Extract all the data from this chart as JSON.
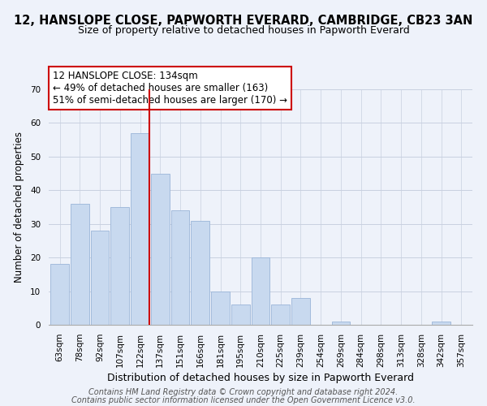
{
  "title": "12, HANSLOPE CLOSE, PAPWORTH EVERARD, CAMBRIDGE, CB23 3AN",
  "subtitle": "Size of property relative to detached houses in Papworth Everard",
  "xlabel": "Distribution of detached houses by size in Papworth Everard",
  "ylabel": "Number of detached properties",
  "bar_labels": [
    "63sqm",
    "78sqm",
    "92sqm",
    "107sqm",
    "122sqm",
    "137sqm",
    "151sqm",
    "166sqm",
    "181sqm",
    "195sqm",
    "210sqm",
    "225sqm",
    "239sqm",
    "254sqm",
    "269sqm",
    "284sqm",
    "298sqm",
    "313sqm",
    "328sqm",
    "342sqm",
    "357sqm"
  ],
  "bar_values": [
    18,
    36,
    28,
    35,
    57,
    45,
    34,
    31,
    10,
    6,
    20,
    6,
    8,
    0,
    1,
    0,
    0,
    0,
    0,
    1,
    0
  ],
  "bar_color": "#c8d9ef",
  "bar_edge_color": "#9ab5d8",
  "vline_color": "#cc0000",
  "ylim": [
    0,
    70
  ],
  "yticks": [
    0,
    10,
    20,
    30,
    40,
    50,
    60,
    70
  ],
  "annotation_title": "12 HANSLOPE CLOSE: 134sqm",
  "annotation_line1": "← 49% of detached houses are smaller (163)",
  "annotation_line2": "51% of semi-detached houses are larger (170) →",
  "annotation_box_color": "#ffffff",
  "annotation_box_edge": "#cc0000",
  "footer1": "Contains HM Land Registry data © Crown copyright and database right 2024.",
  "footer2": "Contains public sector information licensed under the Open Government Licence v3.0.",
  "background_color": "#eef2fa",
  "plot_background": "#eef2fa",
  "grid_color": "#c8d0e0",
  "title_fontsize": 10.5,
  "subtitle_fontsize": 9,
  "xlabel_fontsize": 9,
  "ylabel_fontsize": 8.5,
  "tick_fontsize": 7.5,
  "annotation_fontsize": 8.5,
  "footer_fontsize": 7
}
